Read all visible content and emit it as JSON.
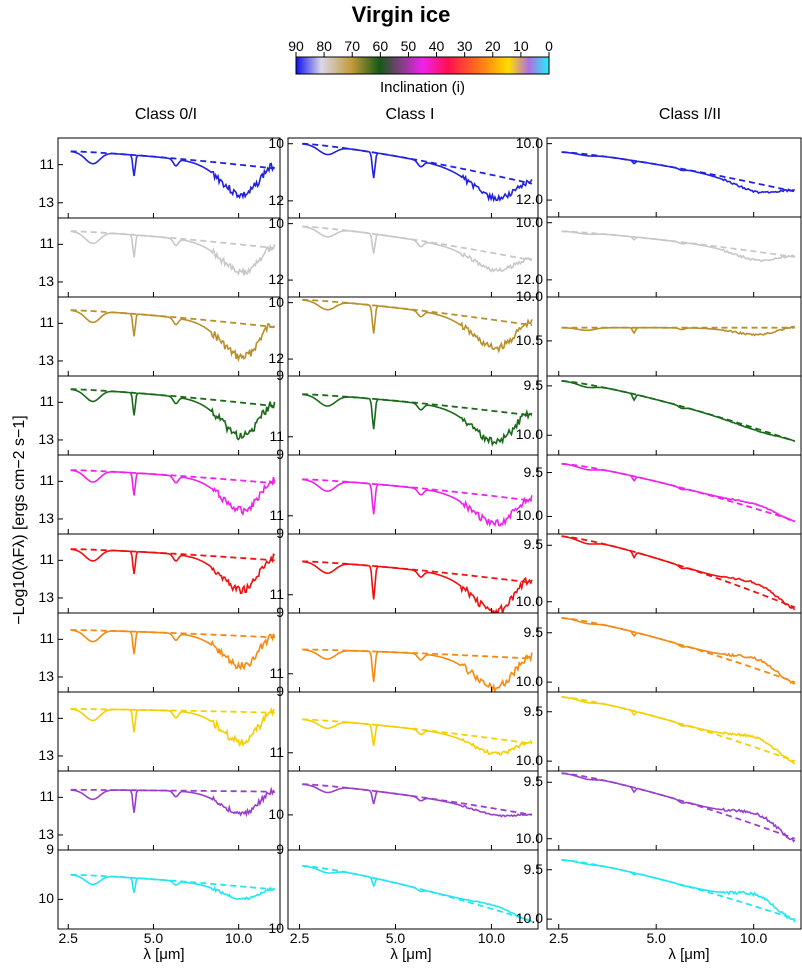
{
  "chart_data": {
    "type": "line",
    "title": "Virgin ice",
    "colorbar": {
      "label": "Inclination (i)",
      "ticks": [
        "90",
        "80",
        "70",
        "60",
        "50",
        "40",
        "30",
        "20",
        "10",
        "0"
      ]
    },
    "columns": [
      "Class 0/I",
      "Class I",
      "Class I/II"
    ],
    "ylabel": "−Log10(λFλ) [ergs cm−2 s−1]",
    "xlabel": "λ [μm]",
    "xticks": [
      2.5,
      5.0,
      10.0
    ],
    "xtick_labels": [
      "2.5",
      "5.0",
      "10.0"
    ],
    "xlim": [
      2.3,
      14.0
    ],
    "inclinations": [
      90,
      80,
      70,
      60,
      50,
      40,
      30,
      20,
      10,
      0
    ],
    "series_colors": [
      "#2222dd",
      "#c8c8c8",
      "#b8902a",
      "#1a6a1a",
      "#ee22ee",
      "#ee1111",
      "#f58a10",
      "#f5d000",
      "#9a3fcc",
      "#22e6f0"
    ],
    "panels": [
      [
        {
          "ylim": [
            9.6,
            13.8
          ],
          "ticks": [
            11,
            13
          ],
          "start": 10.3,
          "ice": [
            0.6,
            1.1,
            0.35
          ],
          "sil": 1.6,
          "dip": 1.1,
          "dash_end": 11.2
        },
        {
          "ylim": [
            9.6,
            13.8
          ],
          "ticks": [
            11,
            13
          ],
          "start": 10.3,
          "ice": [
            0.6,
            1.2,
            0.35
          ],
          "sil": 1.5,
          "dip": 1.0,
          "dash_end": 11.2
        },
        {
          "ylim": [
            9.6,
            13.8
          ],
          "ticks": [
            11,
            13
          ],
          "start": 10.3,
          "ice": [
            0.6,
            1.2,
            0.35
          ],
          "sil": 1.8,
          "dip": 1.4,
          "dash_end": 11.2
        },
        {
          "ylim": [
            9.6,
            13.8
          ],
          "ticks": [
            11,
            13
          ],
          "start": 10.3,
          "ice": [
            0.6,
            1.2,
            0.35
          ],
          "sil": 1.8,
          "dip": 1.2,
          "dash_end": 11.2
        },
        {
          "ylim": [
            9.6,
            13.8
          ],
          "ticks": [
            11,
            13
          ],
          "start": 10.4,
          "ice": [
            0.6,
            1.2,
            0.35
          ],
          "sil": 1.6,
          "dip": 1.2,
          "dash_end": 11.1
        },
        {
          "ylim": [
            9.6,
            13.8
          ],
          "ticks": [
            11,
            13
          ],
          "start": 10.4,
          "ice": [
            0.6,
            1.2,
            0.35
          ],
          "sil": 1.7,
          "dip": 1.3,
          "dash_end": 11.0
        },
        {
          "ylim": [
            9.6,
            13.8
          ],
          "ticks": [
            11,
            13
          ],
          "start": 10.5,
          "ice": [
            0.6,
            1.2,
            0.35
          ],
          "sil": 1.6,
          "dip": 1.0,
          "dash_end": 10.9
        },
        {
          "ylim": [
            9.6,
            13.8
          ],
          "ticks": [
            11,
            13
          ],
          "start": 10.5,
          "ice": [
            0.6,
            1.2,
            0.35
          ],
          "sil": 1.6,
          "dip": 1.0,
          "dash_end": 10.7
        },
        {
          "ylim": [
            9.6,
            13.8
          ],
          "ticks": [
            11,
            13
          ],
          "start": 10.6,
          "ice": [
            0.5,
            1.2,
            0.3
          ],
          "sil": 1.2,
          "dip": 0.6,
          "dash_end": 10.7
        },
        {
          "ylim": [
            9.0,
            10.6
          ],
          "ticks": [
            9,
            10
          ],
          "start": 9.5,
          "ice": [
            0.18,
            0.3,
            0.08
          ],
          "sil": 0.25,
          "dip": 0.15,
          "dash_end": 9.8
        }
      ],
      [
        {
          "ylim": [
            9.8,
            12.6
          ],
          "ticks": [
            10,
            12
          ],
          "start": 10.0,
          "ice": [
            0.3,
            0.9,
            0.2
          ],
          "sil": 0.8,
          "dip": 0.5,
          "dash_end": 11.4
        },
        {
          "ylim": [
            9.8,
            12.6
          ],
          "ticks": [
            10,
            12
          ],
          "start": 10.1,
          "ice": [
            0.3,
            0.7,
            0.2
          ],
          "sil": 0.6,
          "dip": 0.4,
          "dash_end": 11.3
        },
        {
          "ylim": [
            9.8,
            12.6
          ],
          "ticks": [
            10,
            12
          ],
          "start": 9.9,
          "ice": [
            0.3,
            1.0,
            0.2
          ],
          "sil": 1.0,
          "dip": 0.7,
          "dash_end": 10.8
        },
        {
          "ylim": [
            9.0,
            11.6
          ],
          "ticks": [
            9,
            11
          ],
          "start": 9.6,
          "ice": [
            0.35,
            1.0,
            0.2
          ],
          "sil": 1.0,
          "dip": 0.7,
          "dash_end": 10.3
        },
        {
          "ylim": [
            9.0,
            11.6
          ],
          "ticks": [
            9,
            11
          ],
          "start": 9.8,
          "ice": [
            0.35,
            1.0,
            0.2
          ],
          "sil": 0.9,
          "dip": 0.6,
          "dash_end": 10.5
        },
        {
          "ylim": [
            9.0,
            11.6
          ],
          "ticks": [
            9,
            11
          ],
          "start": 9.9,
          "ice": [
            0.35,
            1.1,
            0.2
          ],
          "sil": 1.1,
          "dip": 0.8,
          "dash_end": 10.6
        },
        {
          "ylim": [
            9.0,
            11.6
          ],
          "ticks": [
            9,
            11
          ],
          "start": 10.2,
          "ice": [
            0.3,
            1.0,
            0.2
          ],
          "sil": 1.0,
          "dip": 0.7,
          "dash_end": 10.5
        },
        {
          "ylim": [
            9.0,
            11.6
          ],
          "ticks": [
            9,
            11
          ],
          "start": 9.9,
          "ice": [
            0.25,
            0.7,
            0.15
          ],
          "sil": 0.5,
          "dip": 0.3,
          "dash_end": 10.7
        },
        {
          "ylim": [
            9.0,
            10.8
          ],
          "ticks": [
            10
          ],
          "start": 9.3,
          "ice": [
            0.15,
            0.3,
            0.08
          ],
          "sil": 0.15,
          "dip": 0.05,
          "dash_end": 10.0
        },
        {
          "ylim": [
            9.0,
            10.0
          ],
          "ticks": [
            9,
            10
          ],
          "start": 9.2,
          "ice": [
            0.05,
            0.1,
            0.03
          ],
          "sil": -0.05,
          "dip": -0.05,
          "dash_end": 9.9
        }
      ],
      [
        {
          "ylim": [
            9.8,
            12.6
          ],
          "ticks": [
            10,
            12
          ],
          "start": 10.3,
          "ice": [
            0.05,
            0.1,
            0.05
          ],
          "sil": 0.3,
          "dip": 0.2,
          "dash_end": 11.7
        },
        {
          "ylim": [
            9.8,
            12.6
          ],
          "ticks": [
            10,
            12
          ],
          "start": 10.3,
          "ice": [
            0.05,
            0.1,
            0.05
          ],
          "sil": 0.3,
          "dip": 0.2,
          "dash_end": 11.2
        },
        {
          "ylim": [
            10.0,
            10.9
          ],
          "ticks": [
            10.0,
            10.5
          ],
          "start": 10.35,
          "ice": [
            0.03,
            0.06,
            0.02
          ],
          "sil": 0.08,
          "dip": 0.06,
          "dash_end": 10.35
        },
        {
          "ylim": [
            9.4,
            10.2
          ],
          "ticks": [
            9.5,
            10.0
          ],
          "start": 9.45,
          "ice": [
            0.03,
            0.06,
            0.02
          ],
          "sil": 0.02,
          "dip": 0.01,
          "dash_end": 10.06
        },
        {
          "ylim": [
            9.3,
            10.2
          ],
          "ticks": [
            9.5,
            10.0
          ],
          "start": 9.4,
          "ice": [
            0.03,
            0.05,
            0.02
          ],
          "sil": -0.05,
          "dip": -0.05,
          "dash_end": 10.05
        },
        {
          "ylim": [
            9.4,
            10.1
          ],
          "ticks": [
            9.5,
            10.0
          ],
          "start": 9.42,
          "ice": [
            0.03,
            0.05,
            0.02
          ],
          "sil": -0.08,
          "dip": -0.08,
          "dash_end": 10.05
        },
        {
          "ylim": [
            9.3,
            10.1
          ],
          "ticks": [
            9.5,
            10.0
          ],
          "start": 9.35,
          "ice": [
            0.02,
            0.04,
            0.02
          ],
          "sil": -0.1,
          "dip": -0.1,
          "dash_end": 10.0
        },
        {
          "ylim": [
            9.3,
            10.1
          ],
          "ticks": [
            9.5,
            10.0
          ],
          "start": 9.35,
          "ice": [
            0.02,
            0.04,
            0.02
          ],
          "sil": -0.1,
          "dip": -0.1,
          "dash_end": 10.0
        },
        {
          "ylim": [
            9.4,
            10.1
          ],
          "ticks": [
            9.5,
            10.0
          ],
          "start": 9.42,
          "ice": [
            0.02,
            0.04,
            0.02
          ],
          "sil": -0.1,
          "dip": -0.1,
          "dash_end": 10.0
        },
        {
          "ylim": [
            9.3,
            10.1
          ],
          "ticks": [
            9.5,
            10.0
          ],
          "start": 9.4,
          "ice": [
            0.01,
            0.02,
            0.01
          ],
          "sil": -0.12,
          "dip": -0.12,
          "dash_end": 10.0
        }
      ]
    ]
  }
}
